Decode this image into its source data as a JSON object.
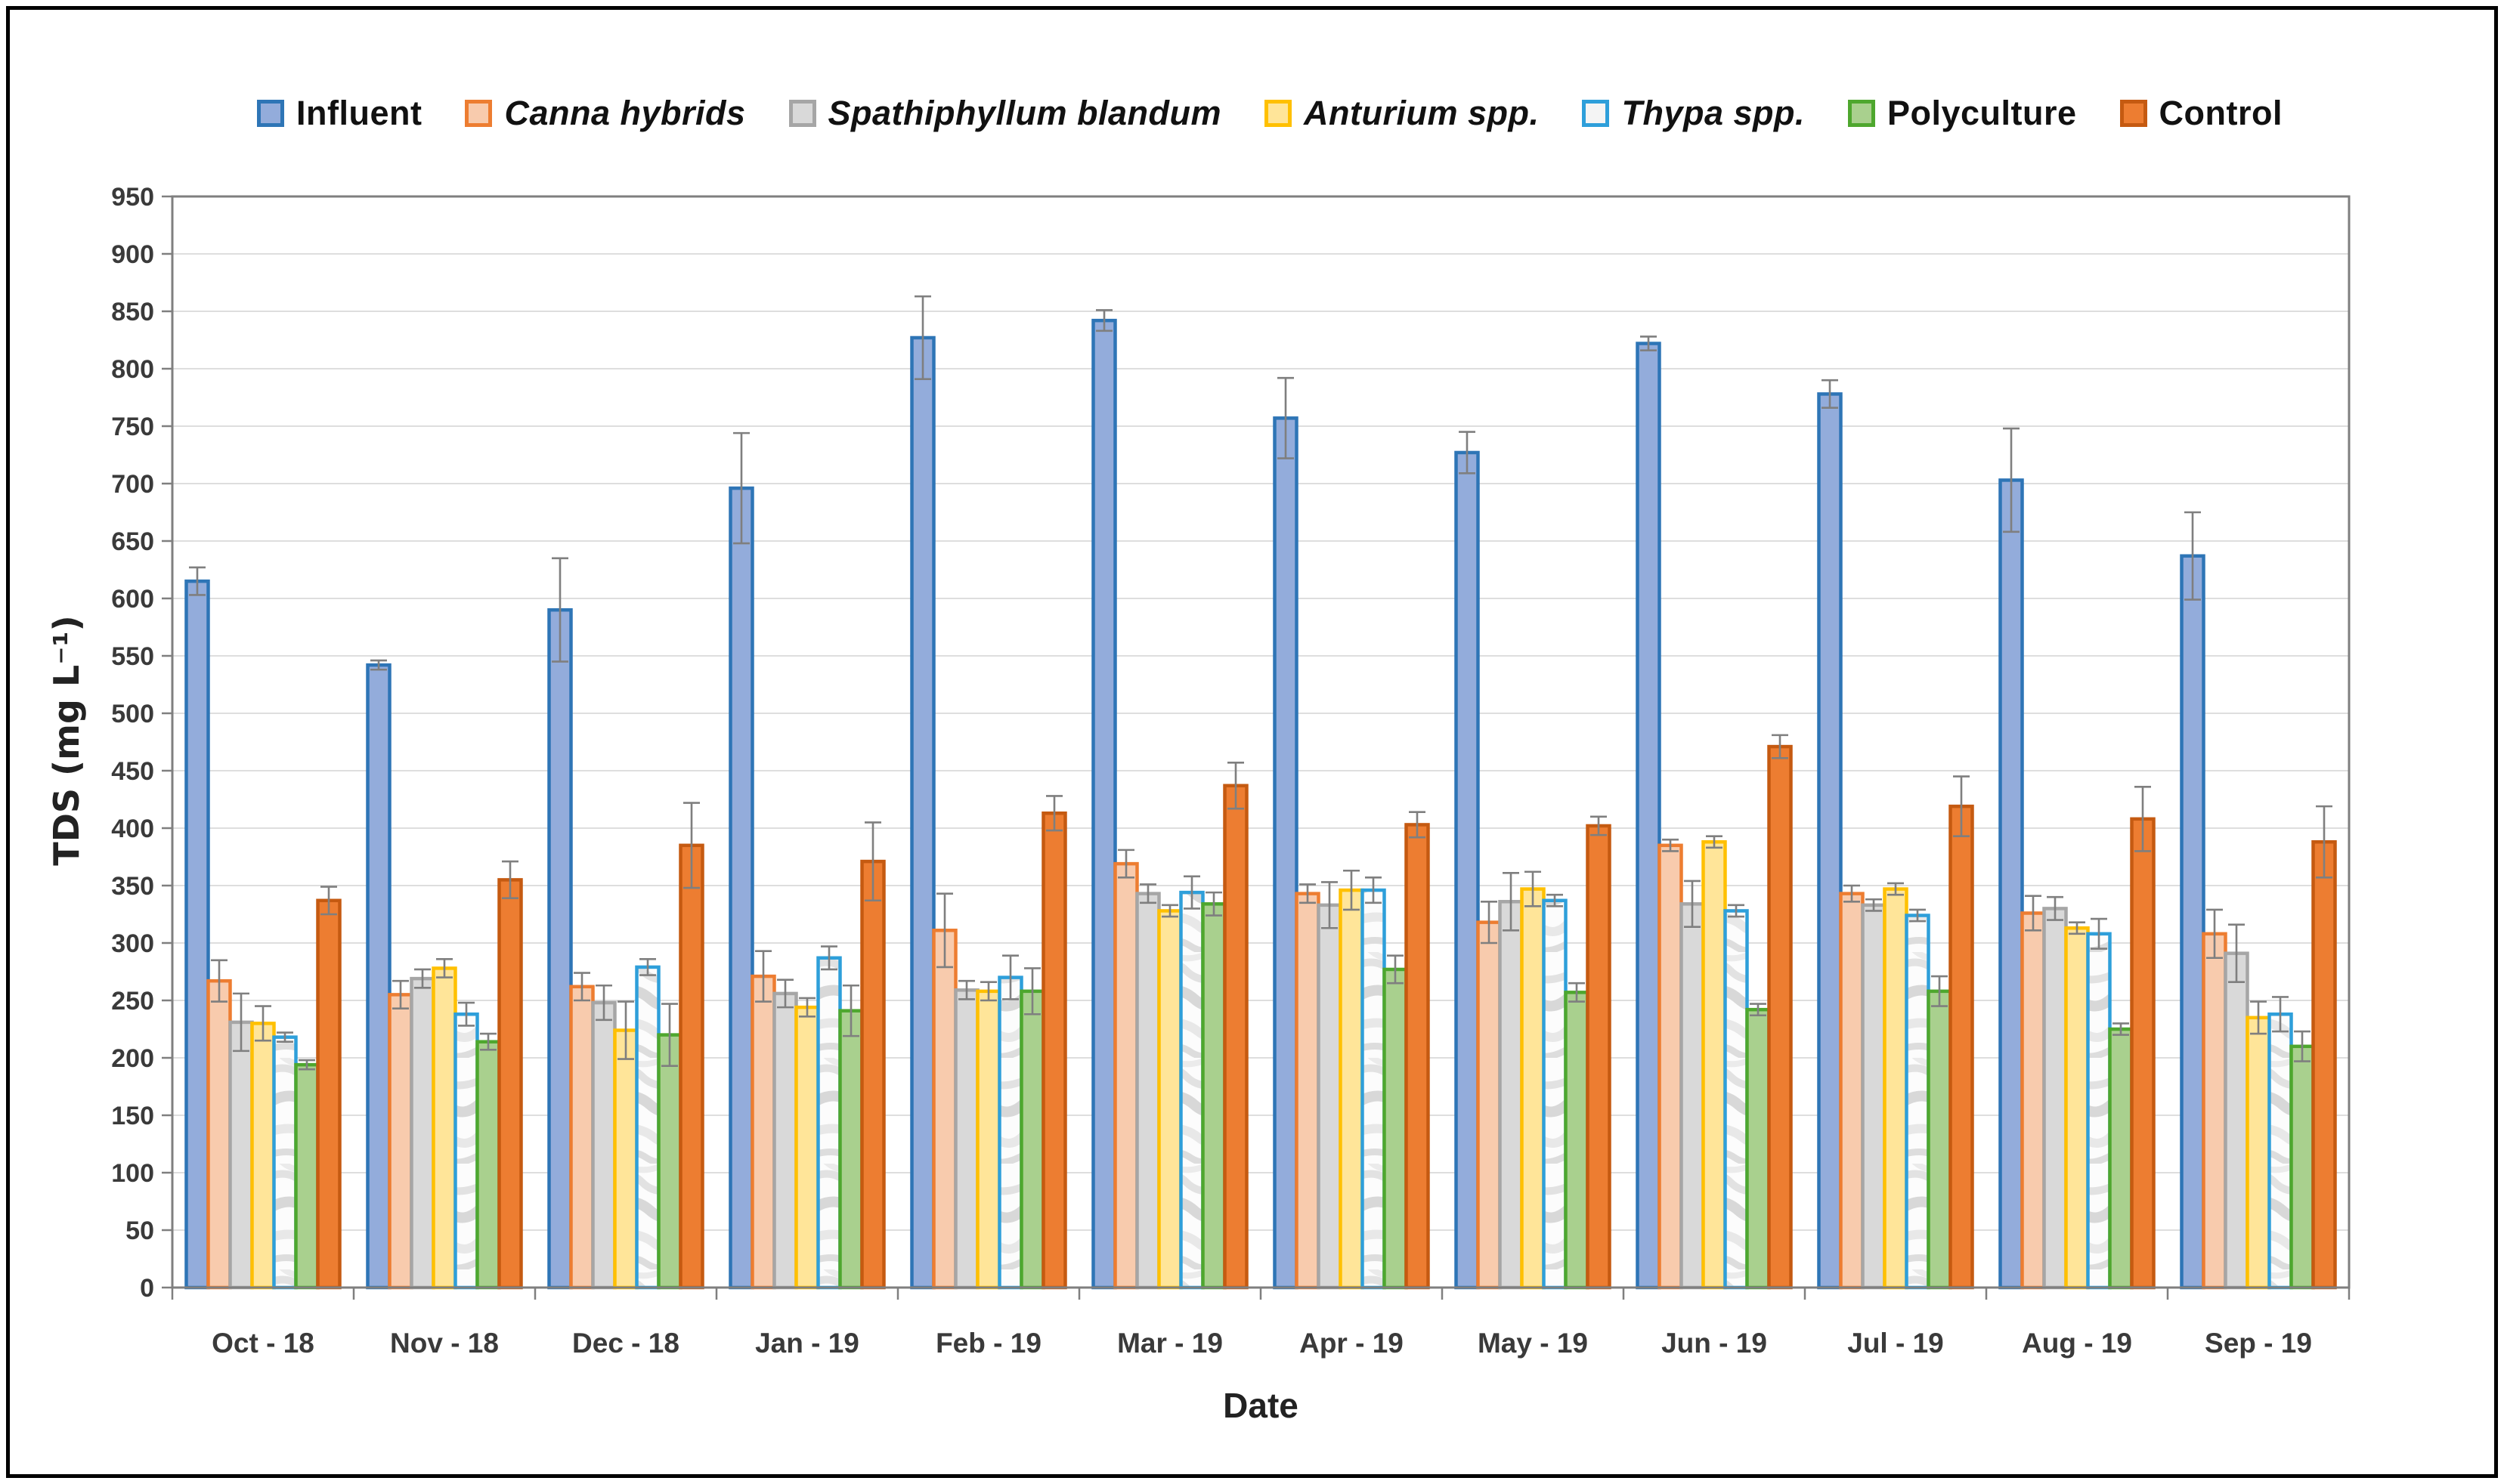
{
  "style": {
    "grid_color": "#D9D9D9",
    "axis_color": "#7F7F7F",
    "error_bar_color": "#7F7F7F",
    "tick_text_color": "#3A3A3A",
    "frame_color": "#000000"
  },
  "legend": {
    "items": [
      {
        "label": "Influent",
        "italic": false,
        "fill": "#93ACDB",
        "border": "#2E75B6"
      },
      {
        "label": "Canna hybrids",
        "italic": true,
        "fill": "#F8CBAD",
        "border": "#ED7D31"
      },
      {
        "label": "Spathiphyllum blandum",
        "italic": true,
        "fill": "#D9D9D9",
        "border": "#A6A6A6"
      },
      {
        "label": "Anturium spp.",
        "italic": true,
        "fill": "#FFE599",
        "border": "#FFC000"
      },
      {
        "label": "Thypa spp.",
        "italic": true,
        "fill": "#F4F4F4",
        "border": "#2E9FDA"
      },
      {
        "label": "Polyculture",
        "italic": false,
        "fill": "#A9D08E",
        "border": "#4EA72E"
      },
      {
        "label": "Control",
        "italic": false,
        "fill": "#ED7D31",
        "border": "#C55A11"
      }
    ]
  },
  "chart_data": {
    "type": "bar",
    "title": "",
    "xlabel": "Date",
    "ylabel": "TDS (mg L⁻¹)",
    "ylim": [
      0,
      950
    ],
    "ytick_step": 50,
    "grid": true,
    "legend_position": "top",
    "categories": [
      "Oct - 18",
      "Nov - 18",
      "Dec - 18",
      "Jan - 19",
      "Feb - 19",
      "Mar - 19",
      "Apr - 19",
      "May - 19",
      "Jun - 19",
      "Jul - 19",
      "Aug - 19",
      "Sep - 19"
    ],
    "series": [
      {
        "name": "Influent",
        "fill": "#93ACDB",
        "border": "#2E75B6",
        "texture": "none",
        "values": [
          615,
          542,
          590,
          696,
          827,
          842,
          757,
          727,
          822,
          778,
          703,
          637
        ],
        "errors": [
          12,
          4,
          45,
          48,
          36,
          9,
          35,
          18,
          6,
          12,
          45,
          38
        ]
      },
      {
        "name": "Canna hybrids",
        "fill": "#F8CBAD",
        "border": "#ED7D31",
        "texture": "none",
        "values": [
          267,
          255,
          262,
          271,
          311,
          369,
          343,
          318,
          385,
          343,
          326,
          308
        ],
        "errors": [
          18,
          12,
          12,
          22,
          32,
          12,
          8,
          18,
          5,
          7,
          15,
          21
        ]
      },
      {
        "name": "Spathiphyllum blandum",
        "fill": "#D9D9D9",
        "border": "#A6A6A6",
        "texture": "none",
        "values": [
          231,
          269,
          248,
          256,
          259,
          343,
          333,
          336,
          334,
          333,
          330,
          291
        ],
        "errors": [
          25,
          8,
          15,
          12,
          8,
          8,
          20,
          25,
          20,
          5,
          10,
          25
        ]
      },
      {
        "name": "Anturium spp.",
        "fill": "#FFE599",
        "border": "#FFC000",
        "texture": "none",
        "values": [
          230,
          278,
          224,
          244,
          258,
          328,
          346,
          347,
          388,
          347,
          313,
          235
        ],
        "errors": [
          15,
          8,
          25,
          8,
          8,
          5,
          17,
          15,
          5,
          5,
          5,
          14
        ]
      },
      {
        "name": "Thypa spp.",
        "fill": "#FCFCFC",
        "border": "#2E9FDA",
        "texture": "marble",
        "values": [
          218,
          238,
          279,
          287,
          270,
          344,
          346,
          337,
          328,
          324,
          308,
          238
        ],
        "errors": [
          4,
          10,
          7,
          10,
          19,
          14,
          11,
          5,
          5,
          5,
          13,
          15
        ]
      },
      {
        "name": "Polyculture",
        "fill": "#A9D08E",
        "border": "#4EA72E",
        "texture": "none",
        "values": [
          194,
          214,
          220,
          241,
          258,
          334,
          277,
          257,
          242,
          258,
          225,
          210
        ],
        "errors": [
          4,
          7,
          27,
          22,
          20,
          10,
          12,
          8,
          5,
          13,
          5,
          13
        ]
      },
      {
        "name": "Control",
        "fill": "#ED7D31",
        "border": "#C55A11",
        "texture": "none",
        "values": [
          337,
          355,
          385,
          371,
          413,
          437,
          403,
          402,
          471,
          419,
          408,
          388
        ],
        "errors": [
          12,
          16,
          37,
          34,
          15,
          20,
          11,
          8,
          10,
          26,
          28,
          31
        ]
      }
    ]
  }
}
